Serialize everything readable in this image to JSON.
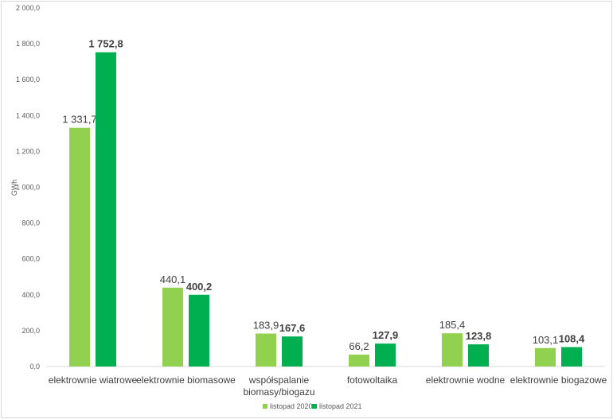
{
  "chart_data": {
    "type": "bar",
    "ylabel": "GWh",
    "ylim": [
      0,
      2000
    ],
    "y_ticks": [
      "0,0",
      "200,0",
      "400,0",
      "600,0",
      "800,0",
      "1 000,0",
      "1 200,0",
      "1 400,0",
      "1 600,0",
      "1 800,0",
      "2 000,0"
    ],
    "categories": [
      [
        "elektrownie wiatrowe"
      ],
      [
        "elektrownie biomasowe"
      ],
      [
        "współspalanie",
        "biomasy/biogazu"
      ],
      [
        "fotowoltaika"
      ],
      [
        "elektrownie wodne"
      ],
      [
        "elektrownie biogazowe"
      ]
    ],
    "series": [
      {
        "name": "listopad 2020",
        "color": "#92d050",
        "values": [
          1331.7,
          440.1,
          183.9,
          66.2,
          185.4,
          103.1
        ],
        "labels": [
          "1 331,7",
          "440,1",
          "183,9",
          "66,2",
          "185,4",
          "103,1"
        ]
      },
      {
        "name": "listopad 2021",
        "color": "#00b050",
        "values": [
          1752.8,
          400.2,
          167.6,
          127.9,
          123.8,
          108.4
        ],
        "labels": [
          "1 752,8",
          "400,2",
          "167,6",
          "127,9",
          "123,8",
          "108,4"
        ]
      }
    ],
    "grid": false,
    "legend_position": "bottom-center"
  }
}
